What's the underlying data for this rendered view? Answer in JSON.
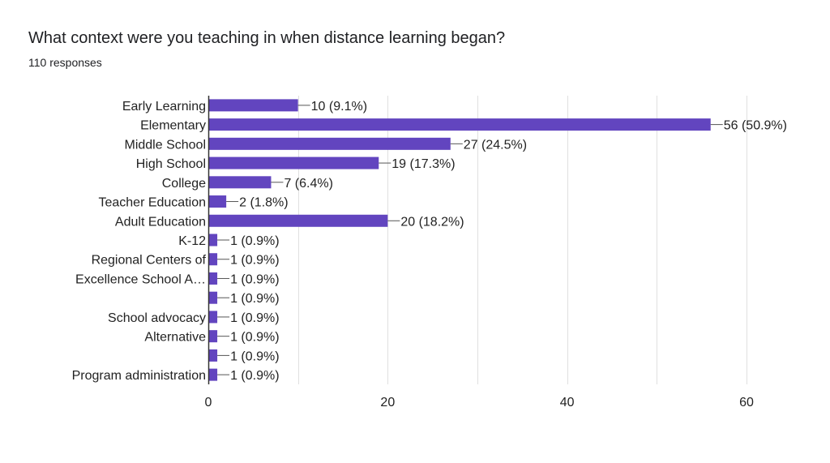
{
  "form": {
    "question": "What context were you teaching in when distance learning began?",
    "responses": "110 responses"
  },
  "colors": {
    "bar": "#6245bf",
    "grid": "#e0e0e0",
    "axis": "#333333",
    "text": "#222222"
  },
  "chart_data": {
    "type": "bar",
    "orientation": "horizontal",
    "categories": [
      [
        "Early Learning"
      ],
      [
        "Elementary"
      ],
      [
        "Middle School"
      ],
      [
        "High School"
      ],
      [
        "College"
      ],
      [
        "Teacher Education"
      ],
      [
        "Adult Education"
      ],
      [
        "K-12"
      ],
      [],
      [
        "Regional Centers of",
        "Excellence School A…"
      ],
      [],
      [
        "School advocacy"
      ],
      [
        "Alternative"
      ],
      [],
      [
        "Program administration"
      ]
    ],
    "values": [
      10,
      56,
      27,
      19,
      7,
      2,
      20,
      1,
      1,
      1,
      1,
      1,
      1,
      1,
      1
    ],
    "data_labels": [
      "10 (9.1%)",
      "56 (50.9%)",
      "27 (24.5%)",
      "19 (17.3%)",
      "7 (6.4%)",
      "2 (1.8%)",
      "20 (18.2%)",
      "1 (0.9%)",
      "1 (0.9%)",
      "1 (0.9%)",
      "1 (0.9%)",
      "1 (0.9%)",
      "1 (0.9%)",
      "1 (0.9%)",
      "1 (0.9%)"
    ],
    "xlim": [
      0,
      60
    ],
    "xticks": [
      0,
      20,
      40,
      60
    ],
    "grid": true,
    "legend": "none"
  }
}
